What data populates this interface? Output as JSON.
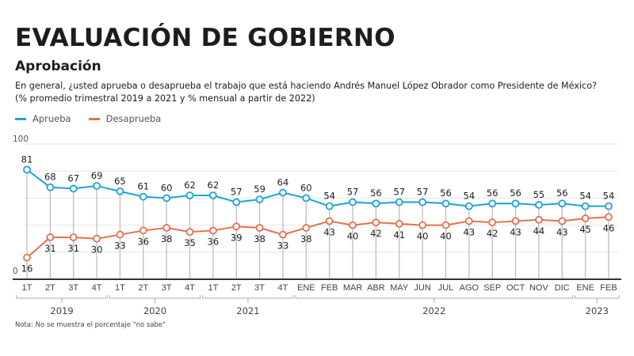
{
  "header": {
    "title": "EVALUACIÓN DE GOBIERNO",
    "subtitle": "Aprobación",
    "question": "En general, ¿usted aprueba o desaprueba el trabajo que está haciendo Andrés Manuel López Obrador como Presidente de México?",
    "note_range": "(% promedio trimestral 2019 a 2021 y % mensual a partir de 2022)"
  },
  "footer": {
    "note": "Nota: No se muestra el porcentaje \"no sabe\""
  },
  "colors": {
    "aprueba": "#1ba3d6",
    "desaprueba": "#e5704f",
    "grid": "#e6e6e6",
    "drop_line": "#bdbdbd",
    "axis": "#333333"
  },
  "chart_data": {
    "type": "line",
    "title": "Aprobación",
    "xlabel": "",
    "ylabel": "",
    "ylim": [
      0,
      100
    ],
    "y_ticks_labeled": [
      "0",
      "100"
    ],
    "grid": true,
    "legend_position": "top-left",
    "categories": [
      "1T",
      "2T",
      "3T",
      "4T",
      "1T",
      "2T",
      "3T",
      "4T",
      "1T",
      "2T",
      "3T",
      "4T",
      "ENE",
      "FEB",
      "MAR",
      "ABR",
      "MAY",
      "JUN",
      "JUL",
      "AGO",
      "SEP",
      "OCT",
      "NOV",
      "DIC",
      "ENE",
      "FEB"
    ],
    "year_groups": [
      {
        "label": "2019",
        "start": 0,
        "end": 3
      },
      {
        "label": "2020",
        "start": 4,
        "end": 7
      },
      {
        "label": "2021",
        "start": 8,
        "end": 11
      },
      {
        "label": "2022",
        "start": 12,
        "end": 23
      },
      {
        "label": "2023",
        "start": 24,
        "end": 25
      }
    ],
    "series": [
      {
        "name": "Aprueba",
        "key": "aprueba",
        "values": [
          81,
          68,
          67,
          69,
          65,
          61,
          60,
          62,
          62,
          57,
          59,
          64,
          60,
          54,
          57,
          56,
          57,
          57,
          56,
          54,
          56,
          56,
          55,
          56,
          54,
          54
        ]
      },
      {
        "name": "Desaprueba",
        "key": "desaprueba",
        "values": [
          16,
          31,
          31,
          30,
          33,
          36,
          38,
          35,
          36,
          39,
          38,
          33,
          38,
          43,
          40,
          42,
          41,
          40,
          40,
          43,
          42,
          43,
          44,
          43,
          45,
          46
        ]
      }
    ]
  }
}
